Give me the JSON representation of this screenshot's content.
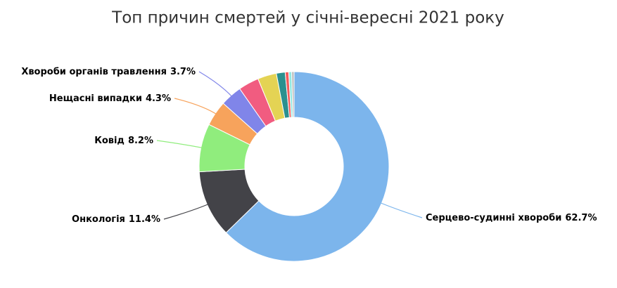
{
  "chart_data": {
    "type": "donut",
    "title": "Топ причин смертей у січні-вересні 2021 року",
    "categories": [
      "Серцево-судинні хвороби",
      "Онкологія",
      "Ковід",
      "Нещасні випадки",
      "Хвороби органів травлення",
      null,
      null,
      null,
      null,
      null,
      null
    ],
    "values": [
      62.7,
      11.4,
      8.2,
      4.3,
      3.7,
      3.5,
      3.2,
      1.5,
      0.6,
      0.5,
      0.4
    ],
    "value_labels": [
      "62.7%",
      "11.4%",
      "8.2%",
      "4.3%",
      "3.7%",
      null,
      null,
      null,
      null,
      null,
      null
    ],
    "colors": [
      "#7cb5ec",
      "#434348",
      "#90ed7d",
      "#f7a35c",
      "#8085e9",
      "#f15c80",
      "#e4d354",
      "#2b908f",
      "#f45b5b",
      "#91e8e1",
      "#bbbbbb"
    ]
  }
}
